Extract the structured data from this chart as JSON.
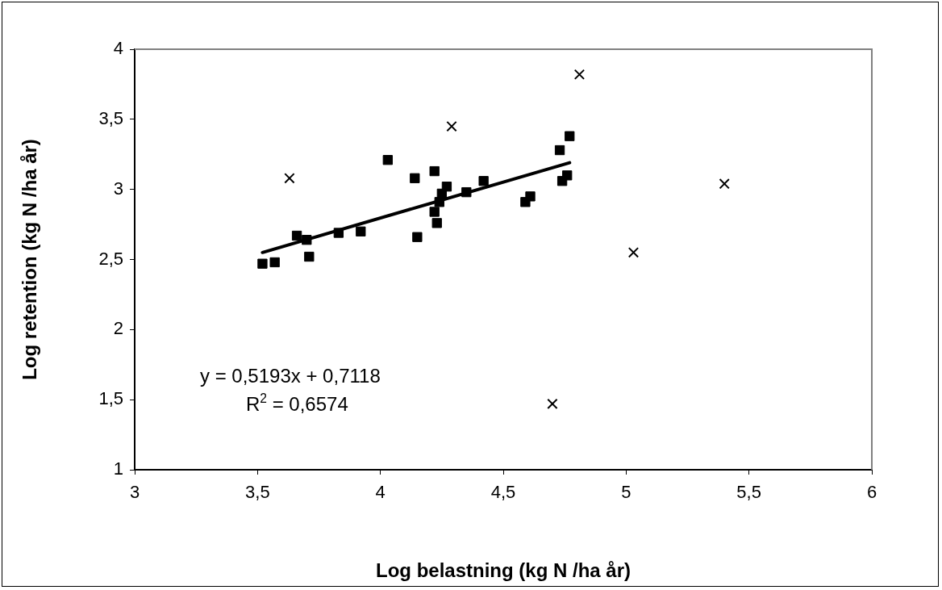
{
  "chart_data": {
    "type": "scatter",
    "xlabel": "Log belastning (kg N /ha år)",
    "ylabel": "Log retention (kg N /ha år)",
    "xlim": [
      3,
      6
    ],
    "xticks": [
      3,
      {
        "value": 3.5,
        "label": "3,5"
      },
      4,
      {
        "value": 4.5,
        "label": "4,5"
      },
      5,
      {
        "value": 5.5,
        "label": "5,5"
      },
      6
    ],
    "ylim": [
      1,
      4
    ],
    "yticks": [
      1,
      {
        "value": 1.5,
        "label": "1,5"
      },
      2,
      {
        "value": 2.5,
        "label": "2,5"
      },
      3,
      {
        "value": 3.5,
        "label": "3,5"
      },
      4
    ],
    "grid": false,
    "legend": false,
    "series": [
      {
        "type": "scatter",
        "marker": "square",
        "color": "#000000",
        "x": [
          3.52,
          3.57,
          3.66,
          3.7,
          3.71,
          3.83,
          3.92,
          4.03,
          4.14,
          4.15,
          4.22,
          4.22,
          4.23,
          4.24,
          4.25,
          4.27,
          4.35,
          4.42,
          4.59,
          4.61,
          4.73,
          4.77,
          4.74,
          4.76
        ],
        "values": [
          2.47,
          2.48,
          2.67,
          2.64,
          2.52,
          2.69,
          2.7,
          3.21,
          3.08,
          2.66,
          3.13,
          2.84,
          2.76,
          2.91,
          2.97,
          3.02,
          2.98,
          3.06,
          2.91,
          2.95,
          3.28,
          3.38,
          3.06,
          3.1
        ]
      },
      {
        "type": "scatter",
        "marker": "cross",
        "color": "#000000",
        "x": [
          3.63,
          4.29,
          4.81,
          5.4,
          5.03,
          4.7
        ],
        "values": [
          3.08,
          3.45,
          3.82,
          3.04,
          2.55,
          1.47
        ]
      },
      {
        "type": "line",
        "marker": "none",
        "color": "#000000",
        "x": [
          3.52,
          4.77
        ],
        "values": [
          2.55,
          3.19
        ]
      }
    ],
    "annotations": [
      "y = 0,5193x + 0,7118",
      "R$^{2}$ = 0,6574"
    ]
  }
}
